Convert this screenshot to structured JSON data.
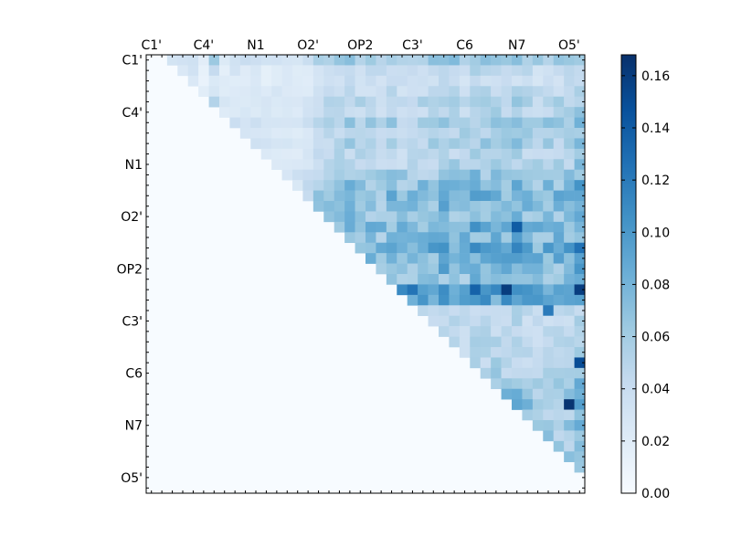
{
  "chart_data": {
    "type": "heatmap",
    "title": "",
    "xlabel": "",
    "ylabel": "",
    "matrix_size": 42,
    "tick_labels": [
      "C1'",
      "C4'",
      "N1",
      "O2'",
      "OP2",
      "C3'",
      "C6",
      "N7",
      "O5'"
    ],
    "tick_indices": [
      0,
      5,
      10,
      15,
      20,
      25,
      30,
      35,
      40
    ],
    "structure": "upper-triangular, diagonal offset 2; lower triangle = 0",
    "colormap": "Blues",
    "clim": [
      0.0,
      0.168
    ],
    "colorbar_ticks": [
      "0.00",
      "0.02",
      "0.04",
      "0.06",
      "0.08",
      "0.10",
      "0.12",
      "0.14",
      "0.16"
    ],
    "colorbar_tick_values": [
      0.0,
      0.02,
      0.04,
      0.06,
      0.08,
      0.1,
      0.12,
      0.14,
      0.16
    ],
    "row_strength": [
      0.04,
      0.02,
      0.015,
      0.02,
      0.03,
      0.025,
      0.04,
      0.03,
      0.035,
      0.025,
      0.03,
      0.045,
      0.055,
      0.065,
      0.06,
      0.05,
      0.07,
      0.06,
      0.08,
      0.07,
      0.06,
      0.05,
      0.125,
      0.085,
      0.02,
      0.02,
      0.02,
      0.025,
      0.02,
      0.025,
      0.03,
      0.04,
      0.05,
      0.05,
      0.04,
      0.05,
      0.04,
      0.04,
      0.04,
      0.03,
      0.02,
      0.01
    ],
    "col_strength": [
      0.0,
      0.0,
      0.03,
      0.025,
      0.03,
      0.01,
      0.05,
      0.015,
      0.025,
      0.02,
      0.02,
      0.015,
      0.02,
      0.02,
      0.015,
      0.025,
      0.04,
      0.045,
      0.065,
      0.07,
      0.065,
      0.06,
      0.055,
      0.065,
      0.055,
      0.06,
      0.06,
      0.065,
      0.08,
      0.07,
      0.065,
      0.08,
      0.075,
      0.08,
      0.07,
      0.085,
      0.07,
      0.06,
      0.065,
      0.065,
      0.07,
      0.1
    ],
    "peak_cells": [
      {
        "row": 22,
        "col": 34,
        "value": 0.16
      },
      {
        "row": 33,
        "col": 40,
        "value": 0.165
      },
      {
        "row": 29,
        "col": 41,
        "value": 0.15
      },
      {
        "row": 24,
        "col": 38,
        "value": 0.12
      },
      {
        "row": 16,
        "col": 35,
        "value": 0.14
      }
    ]
  }
}
